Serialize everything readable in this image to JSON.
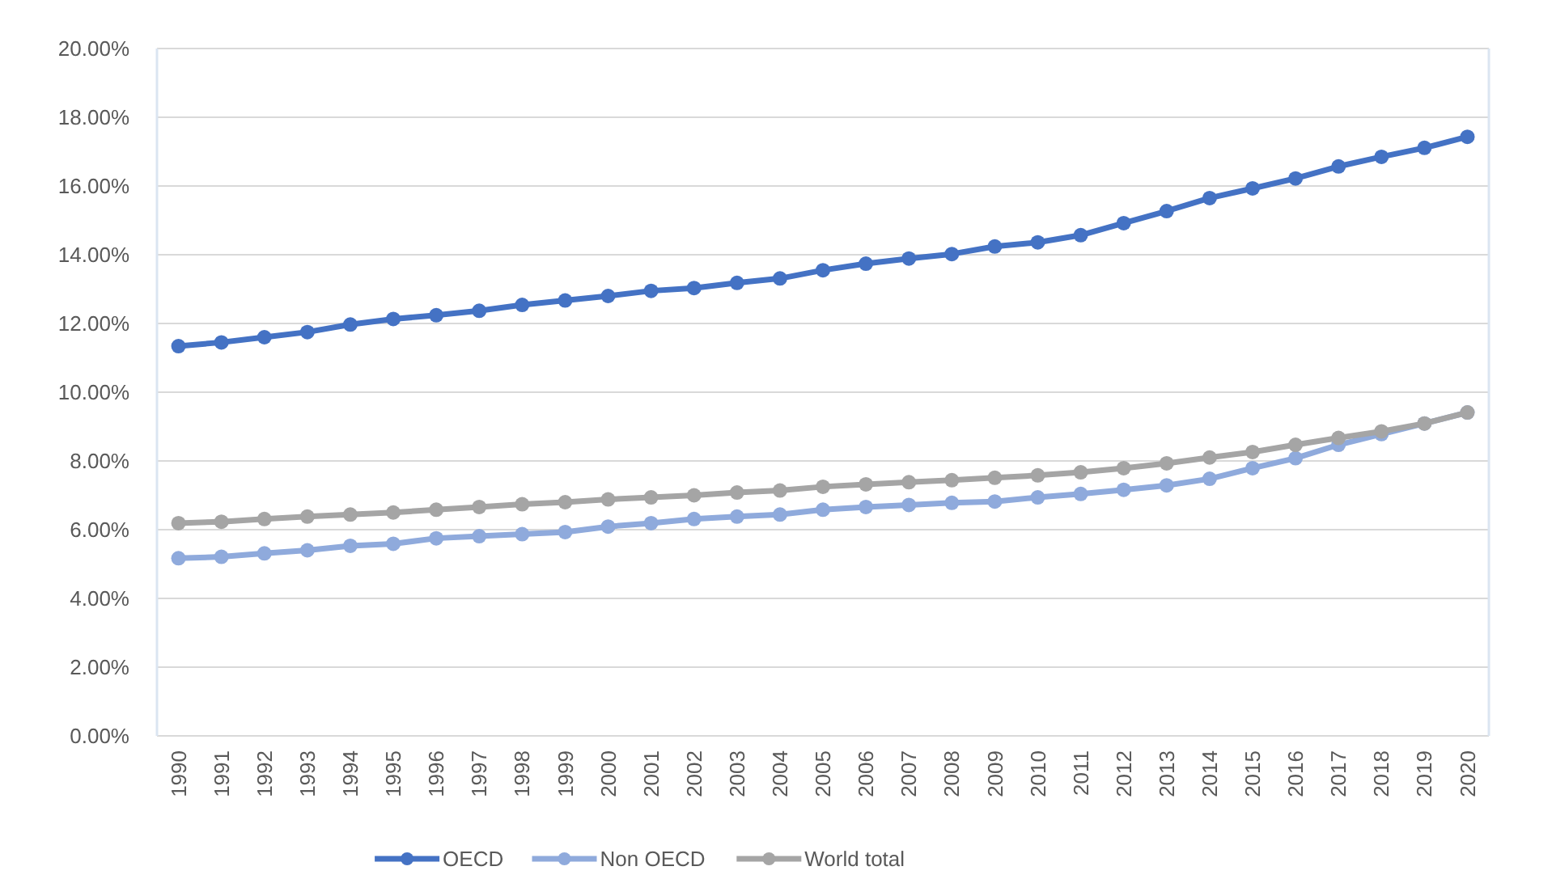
{
  "chart_data": {
    "type": "line",
    "categories": [
      "1990",
      "1991",
      "1992",
      "1993",
      "1994",
      "1995",
      "1996",
      "1997",
      "1998",
      "1999",
      "2000",
      "2001",
      "2002",
      "2003",
      "2004",
      "2005",
      "2006",
      "2007",
      "2008",
      "2009",
      "2010",
      "2011",
      "2012",
      "2013",
      "2014",
      "2015",
      "2016",
      "2017",
      "2018",
      "2019",
      "2020"
    ],
    "series": [
      {
        "name": "OECD",
        "color": "#4472c4",
        "values": [
          11.34,
          11.45,
          11.6,
          11.75,
          11.97,
          12.13,
          12.24,
          12.37,
          12.54,
          12.67,
          12.8,
          12.95,
          13.03,
          13.18,
          13.31,
          13.55,
          13.74,
          13.89,
          14.02,
          14.24,
          14.36,
          14.57,
          14.92,
          15.27,
          15.65,
          15.93,
          16.22,
          16.57,
          16.85,
          17.11,
          17.43
        ]
      },
      {
        "name": "Non OECD",
        "color": "#8faadc",
        "values": [
          5.17,
          5.21,
          5.31,
          5.4,
          5.53,
          5.59,
          5.75,
          5.81,
          5.87,
          5.93,
          6.09,
          6.19,
          6.31,
          6.38,
          6.44,
          6.58,
          6.66,
          6.72,
          6.78,
          6.82,
          6.94,
          7.04,
          7.16,
          7.29,
          7.48,
          7.79,
          8.08,
          8.47,
          8.78,
          9.09,
          9.41
        ]
      },
      {
        "name": "World total",
        "color": "#a5a5a5",
        "values": [
          6.19,
          6.23,
          6.31,
          6.38,
          6.44,
          6.5,
          6.58,
          6.66,
          6.74,
          6.8,
          6.88,
          6.94,
          7.0,
          7.08,
          7.14,
          7.25,
          7.32,
          7.38,
          7.44,
          7.51,
          7.58,
          7.67,
          7.79,
          7.93,
          8.1,
          8.26,
          8.47,
          8.67,
          8.86,
          9.09,
          9.41
        ]
      }
    ],
    "ylim": [
      0,
      20
    ],
    "yticks": [
      {
        "value": 0,
        "label": "0.00%"
      },
      {
        "value": 2,
        "label": "2.00%"
      },
      {
        "value": 4,
        "label": "4.00%"
      },
      {
        "value": 6,
        "label": "6.00%"
      },
      {
        "value": 8,
        "label": "8.00%"
      },
      {
        "value": 10,
        "label": "10.00%"
      },
      {
        "value": 12,
        "label": "12.00%"
      },
      {
        "value": 14,
        "label": "14.00%"
      },
      {
        "value": 16,
        "label": "16.00%"
      },
      {
        "value": 18,
        "label": "18.00%"
      },
      {
        "value": 20,
        "label": "20.00%"
      }
    ],
    "grid": "y",
    "legend": "bottom",
    "marker": "circle",
    "line_style": "solid"
  }
}
